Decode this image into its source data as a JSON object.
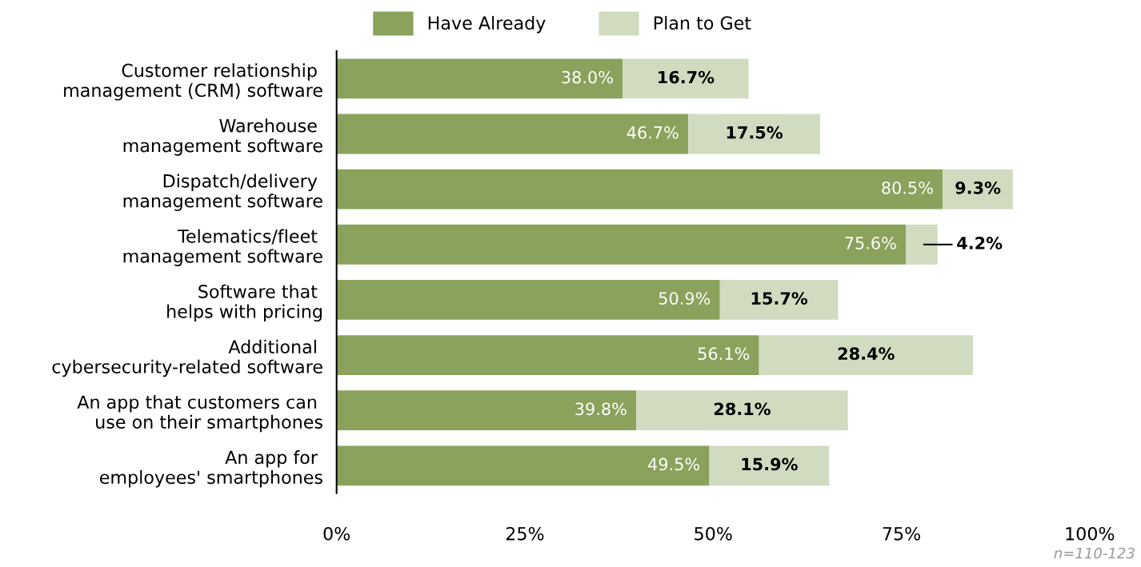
{
  "chart_data": {
    "type": "bar",
    "orientation": "horizontal",
    "stacked": true,
    "categories": [
      "Customer relationship \nmanagement (CRM) software",
      "Warehouse \nmanagement software",
      "Dispatch/delivery \nmanagement software",
      "Telematics/fleet \nmanagement software",
      "Software that \nhelps with pricing",
      "Additional \ncybersecurity-related software",
      "An app that customers can \nuse on their smartphones",
      "An app for \nemployees' smartphones"
    ],
    "series": [
      {
        "name": "Have Already",
        "color": "#8aa25c",
        "values": [
          38.0,
          46.7,
          80.5,
          75.6,
          50.9,
          56.1,
          39.8,
          49.5
        ],
        "value_labels": [
          "38.0%",
          "46.7%",
          "80.5%",
          "75.6%",
          "50.9%",
          "56.1%",
          "39.8%",
          "49.5%"
        ]
      },
      {
        "name": "Plan to Get",
        "color": "#d0dbbf",
        "values": [
          16.7,
          17.5,
          9.3,
          4.2,
          15.7,
          28.4,
          28.1,
          15.9
        ],
        "value_labels": [
          "16.7%",
          "17.5%",
          "9.3%",
          "4.2%",
          "15.7%",
          "28.4%",
          "28.1%",
          "15.9%"
        ]
      }
    ],
    "xlim": [
      0,
      100
    ],
    "xticks": [
      {
        "value": 0,
        "label": "0%"
      },
      {
        "value": 25,
        "label": "25%"
      },
      {
        "value": 50,
        "label": "50%"
      },
      {
        "value": 75,
        "label": "75%"
      },
      {
        "value": 100,
        "label": "100%"
      }
    ],
    "legend": "top",
    "grid": false,
    "annotations": [
      "n=110-123"
    ]
  }
}
